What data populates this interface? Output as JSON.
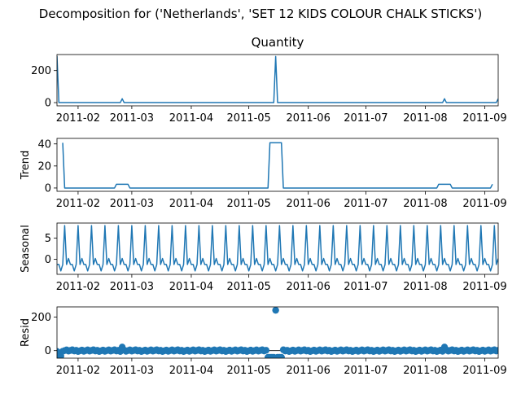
{
  "figure": {
    "suptitle": "Decomposition for ('Netherlands', 'SET 12 KIDS COLOUR  CHALK STICKS')"
  },
  "chart_data": [
    {
      "type": "line",
      "title": "Quantity",
      "ylabel": "",
      "xlim": [
        "2011-01-21",
        "2011-09-08"
      ],
      "ylim": [
        -20,
        300
      ],
      "yticks": [
        0,
        200
      ],
      "grid": false,
      "series": [
        {
          "points": [
            [
              "2011-01-21",
              290
            ],
            [
              "2011-01-22",
              0
            ],
            [
              "2011-02-23",
              0
            ],
            [
              "2011-02-24",
              24
            ],
            [
              "2011-02-25",
              0
            ],
            [
              "2011-05-14",
              0
            ],
            [
              "2011-05-15",
              288
            ],
            [
              "2011-05-16",
              0
            ],
            [
              "2011-08-10",
              0
            ],
            [
              "2011-08-11",
              24
            ],
            [
              "2011-08-12",
              0
            ],
            [
              "2011-09-07",
              0
            ],
            [
              "2011-09-08",
              24
            ]
          ]
        }
      ]
    },
    {
      "type": "line",
      "title": "",
      "ylabel": "Trend",
      "xlim": [
        "2011-01-21",
        "2011-09-08"
      ],
      "ylim": [
        -3,
        45
      ],
      "yticks": [
        0,
        20,
        40
      ],
      "grid": false,
      "series": [
        {
          "points": [
            [
              "2011-01-24",
              41
            ],
            [
              "2011-01-25",
              0
            ],
            [
              "2011-02-20",
              0
            ],
            [
              "2011-02-21",
              3.4
            ],
            [
              "2011-02-27",
              3.4
            ],
            [
              "2011-02-28",
              0
            ],
            [
              "2011-05-11",
              0
            ],
            [
              "2011-05-12",
              41
            ],
            [
              "2011-05-18",
              41
            ],
            [
              "2011-05-19",
              0
            ],
            [
              "2011-08-07",
              0
            ],
            [
              "2011-08-08",
              3.4
            ],
            [
              "2011-08-14",
              3.4
            ],
            [
              "2011-08-15",
              0
            ],
            [
              "2011-09-04",
              0
            ],
            [
              "2011-09-05",
              3.4
            ]
          ]
        }
      ]
    },
    {
      "type": "line",
      "title": "",
      "ylabel": "Seasonal",
      "xlim": [
        "2011-01-21",
        "2011-09-08"
      ],
      "ylim": [
        -3.5,
        8.5
      ],
      "yticks": [
        0,
        5
      ],
      "grid": false,
      "period_days": 7,
      "weekly_pattern": [
        -1.2,
        -1.2,
        -2.7,
        -1.2,
        7.9,
        -1.2,
        0.2
      ],
      "series": [
        {
          "start": "2011-01-21",
          "end": "2011-09-08"
        }
      ]
    },
    {
      "type": "scatter",
      "title": "",
      "ylabel": "Resid",
      "xlim": [
        "2011-01-21",
        "2011-09-08"
      ],
      "ylim": [
        -45,
        260
      ],
      "yticks": [
        0,
        200
      ],
      "grid": false,
      "baseline": 0,
      "series": [
        {
          "points": [
            [
              "2011-01-22",
              -40
            ],
            [
              "2011-01-23",
              -33
            ],
            [
              "2011-02-24",
              21
            ],
            [
              "2011-05-11",
              -40
            ],
            [
              "2011-05-12",
              -40
            ],
            [
              "2011-05-13",
              -40
            ],
            [
              "2011-05-14",
              -40
            ],
            [
              "2011-05-15",
              240
            ],
            [
              "2011-05-16",
              -40
            ],
            [
              "2011-05-17",
              -40
            ],
            [
              "2011-05-18",
              -40
            ],
            [
              "2011-08-11",
              21
            ]
          ],
          "background_range": [
            -5,
            5
          ]
        }
      ]
    }
  ],
  "x_ticks": [
    "2011-02",
    "2011-03",
    "2011-04",
    "2011-05",
    "2011-06",
    "2011-07",
    "2011-08",
    "2011-09"
  ]
}
